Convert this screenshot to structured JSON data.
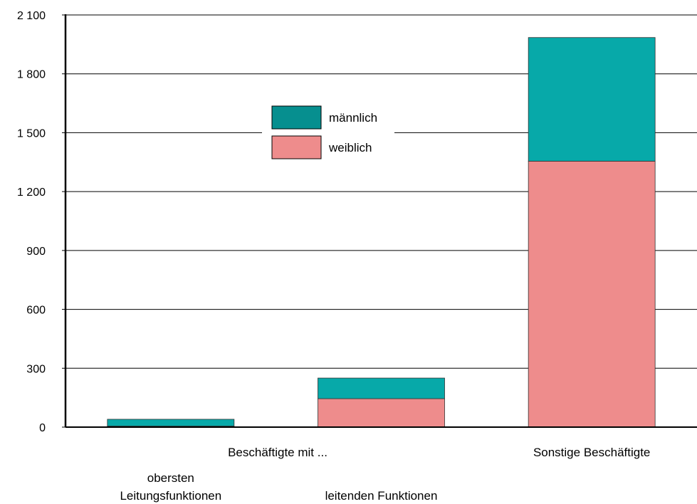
{
  "chart_data": {
    "type": "bar",
    "stacked": true,
    "categories": [
      [
        "obersten",
        "Leitungsfunktionen"
      ],
      [
        "leitenden Funktionen"
      ],
      [
        "Sonstige Beschäftigte"
      ]
    ],
    "group_label": "Beschäftigte mit ...",
    "series": [
      {
        "name": "weiblich",
        "color": "#ee8c8c",
        "values": [
          5,
          145,
          1355
        ]
      },
      {
        "name": "männlich",
        "color": "#07a9a9",
        "values": [
          35,
          105,
          630
        ]
      }
    ],
    "ylim": [
      0,
      2100
    ],
    "yticks": [
      0,
      300,
      600,
      900,
      1200,
      1500,
      1800,
      2100
    ],
    "ytick_labels": [
      "0",
      "300",
      "600",
      "900",
      "1 200",
      "1 500",
      "1 800",
      "2 100"
    ],
    "grid": true,
    "legend": {
      "position": "top-center",
      "items": [
        {
          "label": "männlich",
          "color": "#068f8f"
        },
        {
          "label": "weiblich",
          "color": "#ee8c8c"
        }
      ]
    }
  }
}
